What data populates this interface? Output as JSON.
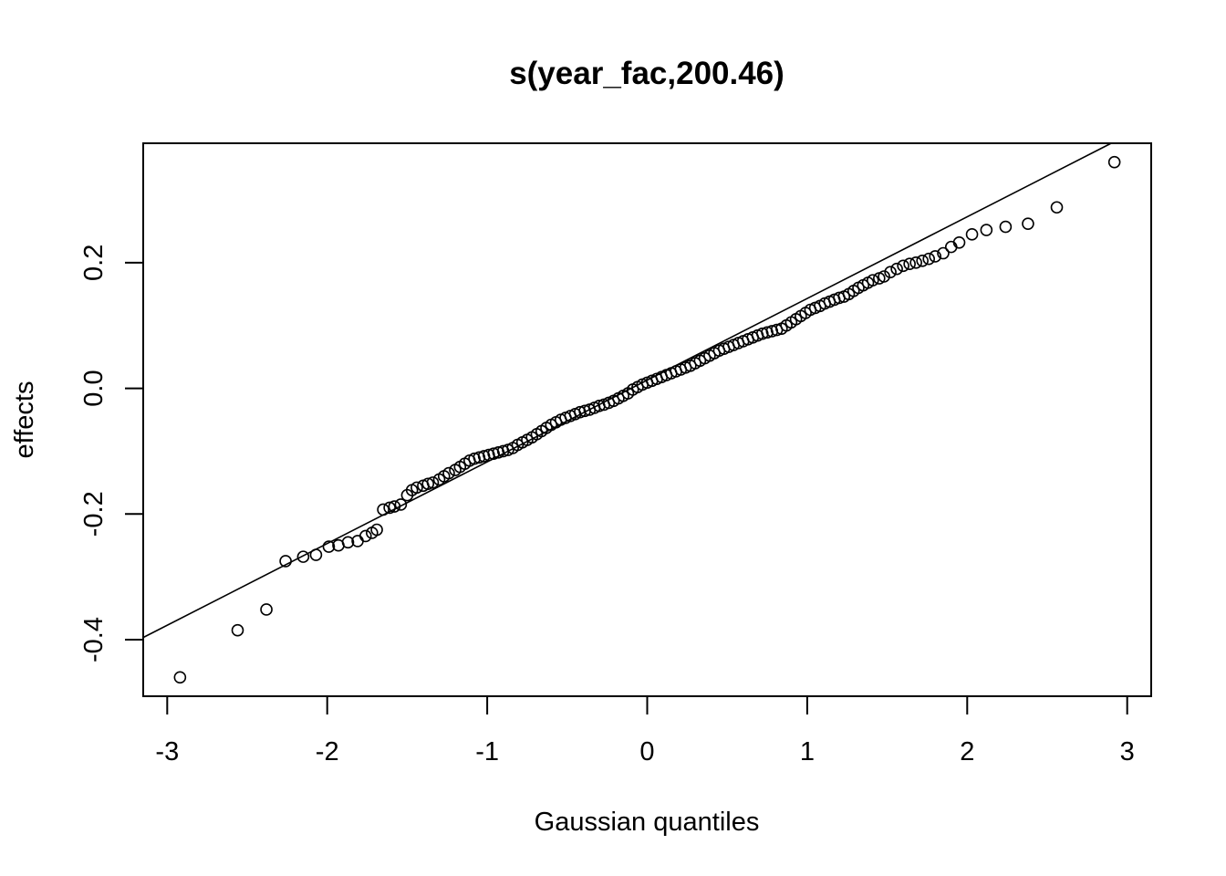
{
  "chart_data": {
    "type": "scatter",
    "title": "s(year_fac,200.46)",
    "xlabel": "Gaussian quantiles",
    "ylabel": "effects",
    "xlim": [
      -3.15,
      3.15
    ],
    "ylim": [
      -0.49,
      0.39
    ],
    "x_ticks": [
      -3,
      -2,
      -1,
      0,
      1,
      2,
      3
    ],
    "x_tick_labels": [
      "-3",
      "-2",
      "-1",
      "0",
      "1",
      "2",
      "3"
    ],
    "y_ticks": [
      -0.4,
      -0.2,
      0.0,
      0.2
    ],
    "y_tick_labels": [
      "-0.4",
      "-0.2",
      "0.0",
      "0.2"
    ],
    "reference_line": {
      "intercept": 0.013,
      "slope": 0.13
    },
    "grid": false,
    "marker": "open-circle",
    "series": [
      {
        "x": [
          -2.92,
          -2.56,
          -2.38,
          -2.26,
          -2.15,
          -2.07,
          -1.99,
          -1.93,
          -1.87,
          -1.81,
          -1.76,
          -1.72,
          -1.69,
          -1.65,
          -1.61,
          -1.58,
          -1.54,
          -1.5,
          -1.47,
          -1.44,
          -1.4,
          -1.37,
          -1.34,
          -1.3,
          -1.27,
          -1.24,
          -1.2,
          -1.17,
          -1.14,
          -1.11,
          -1.08,
          -1.05,
          -1.02,
          -0.99,
          -0.96,
          -0.93,
          -0.9,
          -0.87,
          -0.84,
          -0.81,
          -0.78,
          -0.75,
          -0.72,
          -0.69,
          -0.66,
          -0.63,
          -0.6,
          -0.57,
          -0.54,
          -0.51,
          -0.48,
          -0.45,
          -0.42,
          -0.39,
          -0.36,
          -0.33,
          -0.3,
          -0.27,
          -0.24,
          -0.21,
          -0.18,
          -0.15,
          -0.12,
          -0.09,
          -0.06,
          -0.03,
          0.0,
          0.03,
          0.06,
          0.09,
          0.12,
          0.15,
          0.18,
          0.21,
          0.24,
          0.27,
          0.3,
          0.33,
          0.36,
          0.39,
          0.42,
          0.45,
          0.48,
          0.51,
          0.54,
          0.57,
          0.6,
          0.63,
          0.66,
          0.69,
          0.72,
          0.75,
          0.78,
          0.81,
          0.84,
          0.87,
          0.9,
          0.93,
          0.96,
          0.99,
          1.02,
          1.05,
          1.08,
          1.11,
          1.14,
          1.17,
          1.2,
          1.23,
          1.26,
          1.29,
          1.32,
          1.35,
          1.38,
          1.41,
          1.45,
          1.48,
          1.52,
          1.56,
          1.6,
          1.64,
          1.68,
          1.72,
          1.76,
          1.8,
          1.85,
          1.9,
          1.95,
          2.03,
          2.12,
          2.24,
          2.38,
          2.56,
          2.92
        ],
        "y": [
          -0.46,
          -0.385,
          -0.352,
          -0.275,
          -0.268,
          -0.265,
          -0.252,
          -0.25,
          -0.245,
          -0.243,
          -0.235,
          -0.23,
          -0.225,
          -0.193,
          -0.19,
          -0.188,
          -0.185,
          -0.17,
          -0.162,
          -0.158,
          -0.155,
          -0.152,
          -0.15,
          -0.145,
          -0.14,
          -0.135,
          -0.13,
          -0.125,
          -0.12,
          -0.115,
          -0.112,
          -0.11,
          -0.108,
          -0.106,
          -0.104,
          -0.102,
          -0.1,
          -0.098,
          -0.095,
          -0.09,
          -0.086,
          -0.082,
          -0.078,
          -0.073,
          -0.068,
          -0.063,
          -0.058,
          -0.054,
          -0.05,
          -0.047,
          -0.044,
          -0.041,
          -0.038,
          -0.036,
          -0.034,
          -0.031,
          -0.028,
          -0.026,
          -0.023,
          -0.02,
          -0.016,
          -0.012,
          -0.008,
          -0.002,
          0.002,
          0.006,
          0.009,
          0.012,
          0.015,
          0.018,
          0.021,
          0.024,
          0.027,
          0.03,
          0.033,
          0.036,
          0.04,
          0.044,
          0.048,
          0.052,
          0.056,
          0.06,
          0.063,
          0.066,
          0.069,
          0.072,
          0.075,
          0.078,
          0.081,
          0.084,
          0.087,
          0.089,
          0.091,
          0.093,
          0.095,
          0.1,
          0.105,
          0.11,
          0.115,
          0.12,
          0.125,
          0.128,
          0.131,
          0.135,
          0.138,
          0.141,
          0.144,
          0.146,
          0.15,
          0.155,
          0.16,
          0.164,
          0.168,
          0.172,
          0.175,
          0.178,
          0.185,
          0.19,
          0.195,
          0.198,
          0.2,
          0.203,
          0.206,
          0.21,
          0.215,
          0.225,
          0.232,
          0.245,
          0.252,
          0.257,
          0.262,
          0.288,
          0.36
        ]
      }
    ]
  }
}
